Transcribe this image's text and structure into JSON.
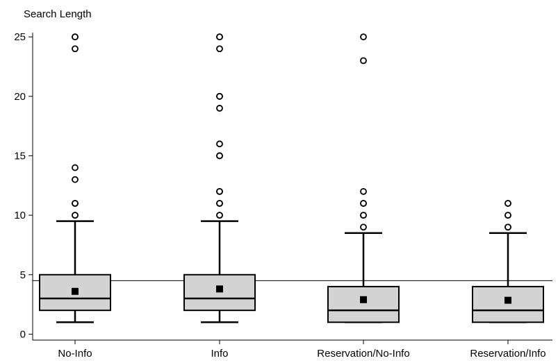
{
  "chart_data": {
    "type": "box",
    "ylabel": "Search Length",
    "xlabel": "",
    "ylim": [
      -0.5,
      26
    ],
    "yticks": [
      0,
      5,
      10,
      15,
      20,
      25
    ],
    "reference_line": 4.5,
    "grid": false,
    "colors": {
      "box_fill": "#d3d3d3",
      "stroke": "#000000",
      "mean_marker": "#000000",
      "outlier_fill": "#ffffff"
    },
    "categories": [
      "No-Info",
      "Info",
      "Reservation/No-Info",
      "Reservation/Info"
    ],
    "boxes": [
      {
        "name": "No-Info",
        "whisker_low": 1,
        "q1": 2,
        "median": 3,
        "q3": 5,
        "whisker_high": 9.5,
        "mean": 3.6,
        "outliers": [
          10,
          10,
          11,
          11,
          13,
          14,
          24,
          25,
          25
        ]
      },
      {
        "name": "Info",
        "whisker_low": 1,
        "q1": 2,
        "median": 3,
        "q3": 5,
        "whisker_high": 9.5,
        "mean": 3.8,
        "outliers": [
          10,
          10,
          11,
          11,
          12,
          12,
          15,
          15,
          16,
          19,
          20,
          20,
          24,
          25,
          25
        ]
      },
      {
        "name": "Reservation/No-Info",
        "whisker_low": 1,
        "q1": 1,
        "median": 2,
        "q3": 4,
        "whisker_high": 8.5,
        "mean": 2.9,
        "outliers": [
          9,
          10,
          10,
          11,
          11,
          12,
          23,
          25
        ]
      },
      {
        "name": "Reservation/Info",
        "whisker_low": 1,
        "q1": 1,
        "median": 2,
        "q3": 4,
        "whisker_high": 8.5,
        "mean": 2.85,
        "outliers": [
          9,
          9,
          10,
          10,
          11,
          11
        ]
      }
    ]
  }
}
